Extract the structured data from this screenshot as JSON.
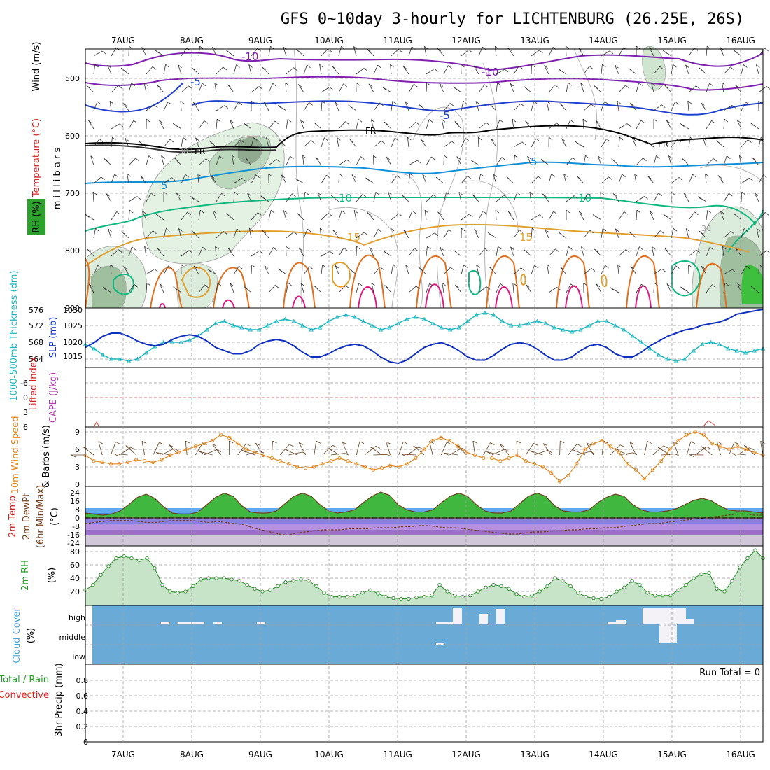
{
  "title": "GFS 0~10day 3-hourly for LICHTENBURG (26.25E, 26S)",
  "days": [
    "7AUG",
    "8AUG",
    "9AUG",
    "10AUG",
    "11AUG",
    "12AUG",
    "13AUG",
    "14AUG",
    "15AUG",
    "16AUG"
  ],
  "colors": {
    "wind": "#000000",
    "temperature_label": "#b04080",
    "rh_fill": "#2ea02e",
    "thickness": "#20b8c0",
    "slp": "#1030c0",
    "lifted_index": "#d02020",
    "cape": "#b040b0",
    "wind10m": "#e08820",
    "temp2m": "#704020",
    "dewpt": "#704020",
    "rh2m": "#20a020",
    "cloud": "#6aaad6",
    "precip_total": "#20a020",
    "precip_conv": "#e02020"
  },
  "chart_data": [
    {
      "panel": "upper-air",
      "type": "contour",
      "ylabels": [
        "Temperature (°C)",
        "Wind (m/s)",
        "m i l l i b a r s",
        "RH (%)"
      ],
      "y_ticks": [
        "500",
        "600",
        "700",
        "800",
        "900"
      ],
      "ylim": [
        900,
        450
      ],
      "isotherm_labels": [
        "-10",
        "-10",
        "-5",
        "-5",
        "FR",
        "FR",
        "FR",
        "5",
        "5",
        "10",
        "10",
        "15",
        "15",
        "30",
        "30"
      ]
    },
    {
      "panel": "thickness-slp",
      "type": "line",
      "ylabels": [
        "1000-500mb Thickness (dm)",
        "SLP (mb)"
      ],
      "y_ticks_left": [
        "564",
        "568",
        "572",
        "576"
      ],
      "y_ticks_right": [
        "1015",
        "1020",
        "1025",
        "1030"
      ],
      "series": [
        {
          "name": "1000-500mb Thickness (dm)",
          "axis": "left",
          "values": [
            567.5,
            566.5,
            565.0,
            564.0,
            564.0,
            563.5,
            564.0,
            565.5,
            567.0,
            568.0,
            568.0,
            568.0,
            568.5,
            569.5,
            571.0,
            572.5,
            573.0,
            572.0,
            571.5,
            571.0,
            571.0,
            572.0,
            573.0,
            573.5,
            573.0,
            572.0,
            571.0,
            571.5,
            573.0,
            574.0,
            574.5,
            574.0,
            573.0,
            572.0,
            571.0,
            571.5,
            572.5,
            573.5,
            574.0,
            573.5,
            572.5,
            571.5,
            571.0,
            571.5,
            573.0,
            574.5,
            575.0,
            574.5,
            573.0,
            572.0,
            572.0,
            572.5,
            573.0,
            572.5,
            571.5,
            571.0,
            570.5,
            571.0,
            572.0,
            573.0,
            573.0,
            572.0,
            571.0,
            569.5,
            568.0,
            566.5,
            565.0,
            564.0,
            563.5,
            564.0,
            566.0,
            567.5,
            568.0,
            567.5,
            566.5,
            566.0,
            565.5,
            566.0,
            566.5
          ]
        },
        {
          "name": "SLP (mb)",
          "axis": "right",
          "values": [
            1018.0,
            1019.5,
            1021.5,
            1022.5,
            1022.5,
            1021.5,
            1020.0,
            1019.0,
            1018.5,
            1019.0,
            1020.5,
            1021.5,
            1022.0,
            1021.5,
            1020.0,
            1018.0,
            1017.0,
            1016.0,
            1016.0,
            1017.0,
            1019.0,
            1020.0,
            1020.5,
            1020.0,
            1018.5,
            1016.5,
            1015.0,
            1015.0,
            1016.0,
            1017.5,
            1018.5,
            1019.0,
            1018.5,
            1017.0,
            1015.0,
            1013.5,
            1013.0,
            1014.0,
            1016.0,
            1018.0,
            1019.0,
            1019.5,
            1018.5,
            1017.0,
            1015.0,
            1014.0,
            1014.0,
            1015.5,
            1017.5,
            1019.0,
            1019.5,
            1019.0,
            1017.5,
            1015.5,
            1014.0,
            1014.0,
            1015.0,
            1017.0,
            1018.5,
            1019.0,
            1018.0,
            1016.0,
            1015.0,
            1015.0,
            1016.5,
            1018.5,
            1020.0,
            1021.5,
            1022.5,
            1023.5,
            1024.0,
            1025.0,
            1025.5,
            1026.0,
            1027.0,
            1028.5,
            1029.0,
            1029.5,
            1030.0
          ]
        }
      ]
    },
    {
      "panel": "stability",
      "type": "line",
      "ylabels": [
        "Lifted Index",
        "CAPE (J/kg)"
      ],
      "y_ticks": [
        "-6",
        "-3",
        "0",
        "3",
        "6"
      ],
      "ylim": [
        6,
        -6
      ],
      "series": [
        {
          "name": "Lifted Index",
          "values": [
            6,
            6,
            6,
            6,
            6,
            6,
            6,
            6,
            6,
            6,
            6,
            6,
            6,
            6,
            6,
            6,
            6,
            6,
            6,
            6,
            6,
            6,
            6,
            6,
            6,
            6,
            6,
            6,
            6,
            6,
            6,
            6,
            6,
            6,
            6,
            6,
            6,
            6,
            6,
            6,
            6,
            6,
            6,
            6,
            6,
            6,
            6,
            6,
            6,
            6,
            6,
            6,
            6,
            6,
            6,
            6,
            6,
            6,
            6,
            6,
            6,
            6,
            6,
            6,
            6,
            6,
            6,
            6,
            6,
            6,
            6,
            6,
            6,
            6,
            6,
            6,
            6,
            6,
            6
          ]
        }
      ]
    },
    {
      "panel": "wind10m",
      "type": "line",
      "ylabels": [
        "10m Wind Speed",
        "& Barbs (m/s)"
      ],
      "y_ticks": [
        "0",
        "3",
        "6",
        "9"
      ],
      "ylim": [
        0,
        10
      ],
      "series": [
        {
          "name": "10m Wind Speed",
          "values": [
            5.0,
            4.0,
            3.8,
            3.5,
            3.5,
            3.8,
            4.2,
            4.0,
            3.8,
            4.2,
            5.0,
            5.5,
            6.0,
            6.5,
            7.0,
            7.5,
            8.5,
            8.0,
            7.0,
            6.0,
            5.5,
            5.0,
            4.5,
            4.0,
            3.5,
            3.0,
            2.8,
            3.0,
            3.5,
            4.0,
            4.5,
            4.0,
            3.5,
            3.0,
            2.5,
            2.8,
            3.2,
            3.0,
            3.5,
            4.5,
            6.0,
            7.5,
            8.0,
            7.5,
            6.5,
            5.5,
            5.0,
            4.5,
            4.5,
            4.0,
            4.5,
            5.0,
            4.0,
            3.5,
            3.0,
            2.0,
            0.5,
            1.5,
            3.5,
            6.0,
            7.0,
            7.5,
            6.5,
            5.5,
            3.5,
            2.5,
            1.0,
            2.5,
            4.0,
            6.0,
            7.5,
            8.5,
            9.0,
            8.5,
            7.0,
            6.5,
            6.0,
            6.5,
            6.0,
            5.5,
            5.0
          ]
        }
      ]
    },
    {
      "panel": "temp2m",
      "type": "area",
      "ylabels": [
        "2m Temp",
        "2m DewPt",
        "(6hr Min/Max)",
        "(°C)"
      ],
      "y_ticks": [
        "-24",
        "-16",
        "-8",
        "0",
        "8",
        "16",
        "24"
      ],
      "ylim": [
        -26,
        28
      ],
      "series": [
        {
          "name": "2m Temp",
          "values": [
            6,
            5,
            4,
            5,
            8,
            14,
            21,
            24,
            20,
            12,
            6,
            5,
            5,
            7,
            14,
            21,
            25,
            22,
            13,
            7,
            6,
            6,
            8,
            15,
            22,
            25,
            22,
            14,
            8,
            6,
            7,
            9,
            16,
            22,
            26,
            23,
            14,
            9,
            7,
            7,
            9,
            16,
            22,
            25,
            22,
            14,
            8,
            6,
            6,
            8,
            15,
            22,
            25,
            22,
            13,
            8,
            7,
            7,
            9,
            16,
            21,
            24,
            22,
            14,
            9,
            7,
            7,
            8,
            10,
            14,
            18,
            20,
            18,
            13,
            9,
            8,
            8,
            7,
            6
          ]
        },
        {
          "name": "2m DewPt",
          "values": [
            -4,
            -3,
            -2,
            -1,
            -1,
            -1,
            -2,
            -3,
            -3,
            -2,
            -1,
            -1,
            -1,
            -2,
            -3,
            -2,
            -3,
            -4,
            -5,
            -8,
            -10,
            -12,
            -14,
            -15,
            -13,
            -12,
            -11,
            -10,
            -10,
            -10,
            -9,
            -9,
            -9,
            -8,
            -8,
            -8,
            -7,
            -7,
            -6,
            -6,
            -7,
            -8,
            -8,
            -9,
            -10,
            -11,
            -12,
            -13,
            -14,
            -14,
            -13,
            -12,
            -12,
            -11,
            -11,
            -10,
            -10,
            -9,
            -9,
            -8,
            -8,
            -7,
            -6,
            -5,
            -4,
            -4,
            -3,
            -2,
            -1,
            0,
            1,
            2,
            3,
            4,
            5,
            5,
            4,
            4
          ]
        }
      ]
    },
    {
      "panel": "rh2m",
      "type": "area",
      "ylabels": [
        "2m RH",
        "(%)"
      ],
      "y_ticks": [
        "20",
        "40",
        "60",
        "80"
      ],
      "ylim": [
        8,
        88
      ],
      "series": [
        {
          "name": "2m RH",
          "values": [
            22,
            30,
            45,
            58,
            70,
            73,
            70,
            67,
            70,
            55,
            30,
            20,
            18,
            20,
            28,
            38,
            40,
            40,
            40,
            38,
            36,
            30,
            24,
            20,
            22,
            28,
            34,
            36,
            38,
            36,
            28,
            18,
            12,
            12,
            12,
            14,
            18,
            22,
            17,
            12,
            10,
            9,
            9,
            11,
            12,
            14,
            30,
            20,
            14,
            12,
            14,
            20,
            26,
            30,
            28,
            24,
            16,
            12,
            14,
            20,
            28,
            40,
            36,
            28,
            18,
            12,
            10,
            9,
            12,
            20,
            26,
            36,
            30,
            18,
            14,
            14,
            14,
            22,
            30,
            40,
            46,
            48,
            24,
            20,
            36,
            56,
            70,
            82,
            70
          ]
        }
      ]
    },
    {
      "panel": "cloud",
      "type": "heatmap",
      "ylabels": [
        "Cloud Cover",
        "(%)"
      ],
      "rows": [
        "high",
        "middle",
        "low"
      ]
    },
    {
      "panel": "precip",
      "type": "bar",
      "ylabels": [
        "Total / Rain",
        "Convective",
        "3hr Precip (mm)"
      ],
      "y_ticks": [
        "0",
        "0.2",
        "0.4",
        "0.6",
        "0.8"
      ],
      "ylim": [
        0,
        0.95
      ],
      "run_total": "Run Total = 0",
      "values": []
    }
  ]
}
